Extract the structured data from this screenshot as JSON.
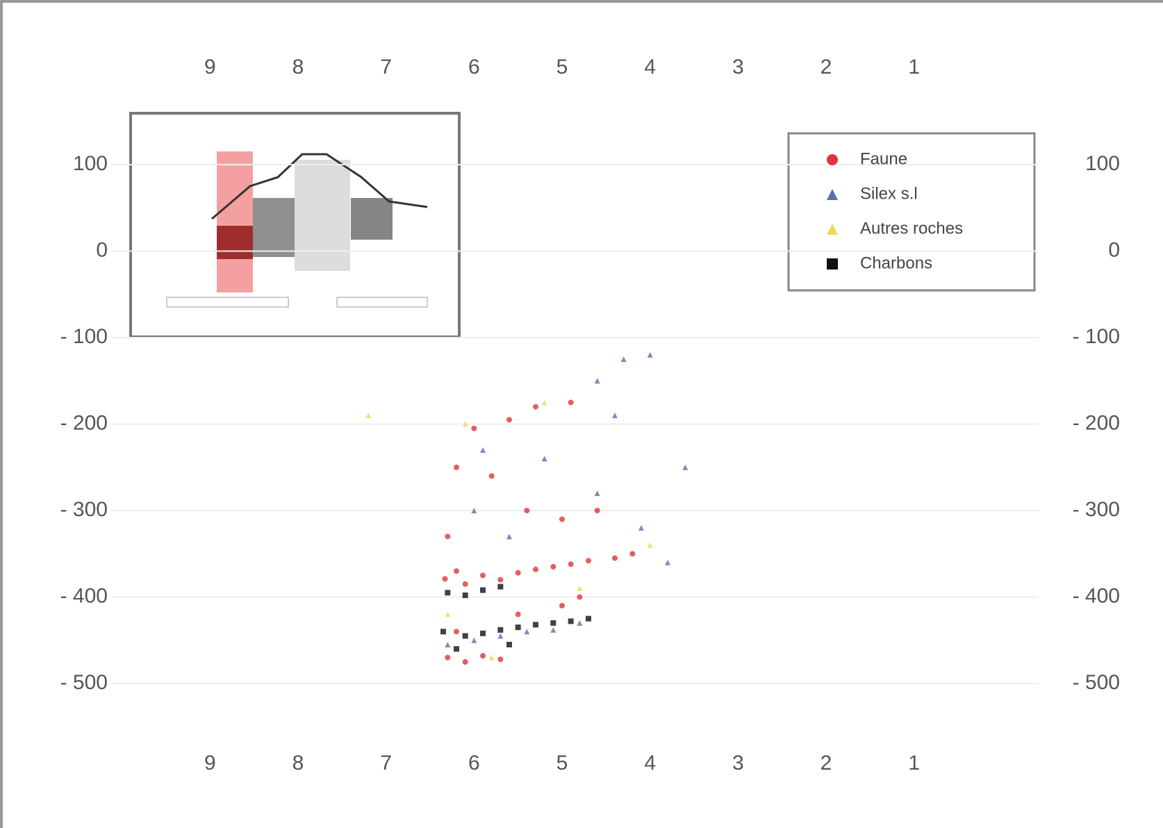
{
  "chart_data": {
    "type": "scatter",
    "xlim": [
      9.5,
      0.5
    ],
    "ylim": [
      -500,
      100
    ],
    "xticks": [
      9,
      8,
      7,
      6,
      5,
      4,
      3,
      2,
      1
    ],
    "yticks": [
      100,
      0,
      {
        "value": -100,
        "label": "- 100"
      },
      {
        "value": -200,
        "label": "- 200"
      },
      {
        "value": -300,
        "label": "- 300"
      },
      {
        "value": -400,
        "label": "- 400"
      },
      {
        "value": -500,
        "label": "- 500"
      }
    ],
    "grid": true,
    "legend": "upper right",
    "series": [
      {
        "name": "Faune",
        "color": "#e0333a",
        "marker": "circle",
        "x": [
          6.33,
          6.2,
          6.1,
          5.9,
          5.7,
          5.5,
          5.3,
          5.1,
          4.9,
          4.7,
          4.4,
          4.2,
          6.3,
          6.1,
          5.9,
          5.7,
          6.0,
          5.6,
          5.3,
          4.9,
          6.2,
          5.8,
          5.4,
          5.0,
          4.6,
          6.3,
          5.5,
          5.0,
          4.8,
          6.2
        ],
        "y": [
          -379,
          -370,
          -385,
          -375,
          -380,
          -372,
          -368,
          -365,
          -362,
          -358,
          -355,
          -350,
          -470,
          -475,
          -468,
          -472,
          -205,
          -195,
          -180,
          -175,
          -250,
          -260,
          -300,
          -310,
          -300,
          -330,
          -420,
          -410,
          -400,
          -440
        ]
      },
      {
        "name": "Silex s.l",
        "color": "#5a6fb0",
        "marker": "triangle",
        "x": [
          6.3,
          6.0,
          5.7,
          5.4,
          5.1,
          4.8,
          5.9,
          5.2,
          4.6,
          4.3,
          4.0,
          4.6,
          4.1,
          3.8,
          3.6,
          4.4,
          5.6,
          6.0
        ],
        "y": [
          -455,
          -450,
          -445,
          -440,
          -438,
          -430,
          -230,
          -240,
          -150,
          -125,
          -120,
          -280,
          -320,
          -360,
          -250,
          -190,
          -330,
          -300
        ]
      },
      {
        "name": "Autres roches",
        "color": "#ecd95a",
        "marker": "triangle",
        "x": [
          6.1,
          5.2,
          7.2,
          5.8,
          4.8,
          4.0,
          6.3
        ],
        "y": [
          -200,
          -175,
          -190,
          -470,
          -390,
          -340,
          -420
        ]
      },
      {
        "name": "Charbons",
        "color": "#111111",
        "marker": "square",
        "x": [
          6.3,
          6.1,
          5.9,
          5.7,
          6.35,
          6.1,
          5.9,
          5.7,
          5.5,
          5.3,
          5.1,
          4.9,
          4.7,
          6.2,
          5.6
        ],
        "y": [
          -395,
          -398,
          -392,
          -388,
          -440,
          -445,
          -442,
          -438,
          -435,
          -432,
          -430,
          -428,
          -425,
          -460,
          -455
        ]
      }
    ]
  }
}
